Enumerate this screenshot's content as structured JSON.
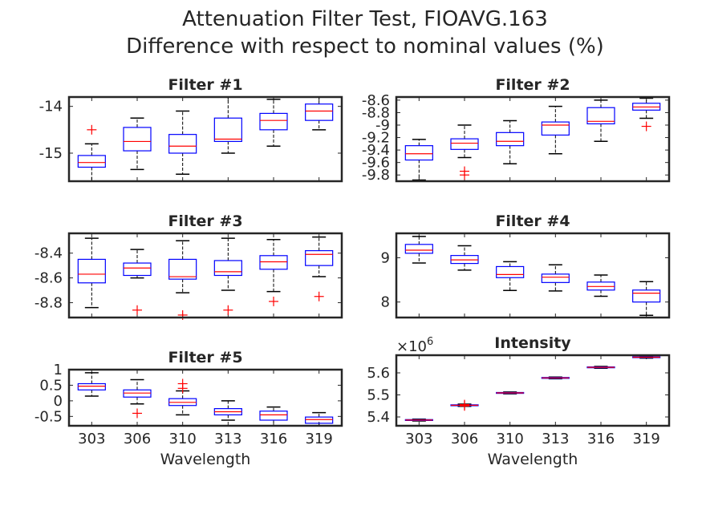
{
  "figure": {
    "title_line1": "Attenuation Filter Test, FIOAVG.163",
    "title_line2": "Difference with respect to nominal values (%)"
  },
  "chart_data": [
    {
      "type": "boxplot",
      "title": "Filter #1",
      "categories": [
        "303",
        "306",
        "310",
        "313",
        "316",
        "319"
      ],
      "xlabel": "",
      "ylim": [
        -15.6,
        -13.8
      ],
      "yticks": [
        -15,
        -14
      ],
      "ytick_labels": [
        "-15",
        "-14"
      ],
      "boxes": [
        {
          "whisker_low": -15.6,
          "q1": -15.3,
          "median": -15.2,
          "q3": -15.05,
          "whisker_high": -14.8,
          "outliers": [
            -14.5
          ]
        },
        {
          "whisker_low": -15.35,
          "q1": -14.95,
          "median": -14.75,
          "q3": -14.45,
          "whisker_high": -14.25,
          "outliers": []
        },
        {
          "whisker_low": -15.45,
          "q1": -15.0,
          "median": -14.85,
          "q3": -14.6,
          "whisker_high": -14.1,
          "outliers": []
        },
        {
          "whisker_low": -15.0,
          "q1": -14.75,
          "median": -14.7,
          "q3": -14.25,
          "whisker_high": -13.8,
          "outliers": []
        },
        {
          "whisker_low": -14.85,
          "q1": -14.5,
          "median": -14.3,
          "q3": -14.15,
          "whisker_high": -13.85,
          "outliers": []
        },
        {
          "whisker_low": -14.5,
          "q1": -14.3,
          "median": -14.1,
          "q3": -13.95,
          "whisker_high": -13.8,
          "outliers": []
        }
      ]
    },
    {
      "type": "boxplot",
      "title": "Filter #2",
      "categories": [
        "303",
        "306",
        "310",
        "313",
        "316",
        "319"
      ],
      "xlabel": "",
      "ylim": [
        -9.9,
        -8.55
      ],
      "yticks": [
        -9.8,
        -9.6,
        -9.4,
        -9.2,
        -9,
        -8.8,
        -8.6
      ],
      "ytick_labels": [
        "-9.8",
        "-9.6",
        "-9.4",
        "-9.2",
        "-9",
        "-8.8",
        "-8.6"
      ],
      "boxes": [
        {
          "whisker_low": -9.88,
          "q1": -9.56,
          "median": -9.46,
          "q3": -9.33,
          "whisker_high": -9.23,
          "outliers": []
        },
        {
          "whisker_low": -9.52,
          "q1": -9.39,
          "median": -9.29,
          "q3": -9.22,
          "whisker_high": -9.0,
          "outliers": [
            -9.74,
            -9.8
          ]
        },
        {
          "whisker_low": -9.62,
          "q1": -9.33,
          "median": -9.26,
          "q3": -9.12,
          "whisker_high": -8.93,
          "outliers": []
        },
        {
          "whisker_low": -9.46,
          "q1": -9.16,
          "median": -9.0,
          "q3": -8.95,
          "whisker_high": -8.7,
          "outliers": []
        },
        {
          "whisker_low": -9.26,
          "q1": -8.98,
          "median": -8.94,
          "q3": -8.72,
          "whisker_high": -8.6,
          "outliers": []
        },
        {
          "whisker_low": -8.89,
          "q1": -8.76,
          "median": -8.71,
          "q3": -8.65,
          "whisker_high": -8.57,
          "outliers": [
            -9.02
          ]
        }
      ]
    },
    {
      "type": "boxplot",
      "title": "Filter #3",
      "categories": [
        "303",
        "306",
        "310",
        "313",
        "316",
        "319"
      ],
      "xlabel": "",
      "ylim": [
        -8.92,
        -8.24
      ],
      "yticks": [
        -8.8,
        -8.6,
        -8.4
      ],
      "ytick_labels": [
        "-8.8",
        "-8.6",
        "-8.4"
      ],
      "boxes": [
        {
          "whisker_low": -8.84,
          "q1": -8.64,
          "median": -8.57,
          "q3": -8.45,
          "whisker_high": -8.28,
          "outliers": []
        },
        {
          "whisker_low": -8.6,
          "q1": -8.58,
          "median": -8.52,
          "q3": -8.48,
          "whisker_high": -8.37,
          "outliers": [
            -8.86
          ]
        },
        {
          "whisker_low": -8.72,
          "q1": -8.61,
          "median": -8.59,
          "q3": -8.45,
          "whisker_high": -8.3,
          "outliers": [
            -8.9
          ]
        },
        {
          "whisker_low": -8.7,
          "q1": -8.58,
          "median": -8.55,
          "q3": -8.46,
          "whisker_high": -8.28,
          "outliers": [
            -8.86
          ]
        },
        {
          "whisker_low": -8.71,
          "q1": -8.53,
          "median": -8.47,
          "q3": -8.42,
          "whisker_high": -8.29,
          "outliers": [
            -8.79
          ]
        },
        {
          "whisker_low": -8.59,
          "q1": -8.5,
          "median": -8.41,
          "q3": -8.38,
          "whisker_high": -8.27,
          "outliers": [
            -8.75
          ]
        }
      ]
    },
    {
      "type": "boxplot",
      "title": "Filter #4",
      "categories": [
        "303",
        "306",
        "310",
        "313",
        "316",
        "319"
      ],
      "xlabel": "",
      "ylim": [
        7.65,
        9.55
      ],
      "yticks": [
        8,
        9
      ],
      "ytick_labels": [
        "8",
        "9"
      ],
      "boxes": [
        {
          "whisker_low": 8.88,
          "q1": 9.1,
          "median": 9.17,
          "q3": 9.3,
          "whisker_high": 9.48,
          "outliers": []
        },
        {
          "whisker_low": 8.72,
          "q1": 8.87,
          "median": 8.95,
          "q3": 9.05,
          "whisker_high": 9.27,
          "outliers": []
        },
        {
          "whisker_low": 8.26,
          "q1": 8.55,
          "median": 8.62,
          "q3": 8.8,
          "whisker_high": 8.91,
          "outliers": []
        },
        {
          "whisker_low": 8.25,
          "q1": 8.44,
          "median": 8.56,
          "q3": 8.63,
          "whisker_high": 8.84,
          "outliers": []
        },
        {
          "whisker_low": 8.13,
          "q1": 8.27,
          "median": 8.35,
          "q3": 8.45,
          "whisker_high": 8.61,
          "outliers": []
        },
        {
          "whisker_low": 7.7,
          "q1": 8.0,
          "median": 8.2,
          "q3": 8.27,
          "whisker_high": 8.46,
          "outliers": []
        }
      ]
    },
    {
      "type": "boxplot",
      "title": "Filter #5",
      "categories": [
        "303",
        "306",
        "310",
        "313",
        "316",
        "319"
      ],
      "xlabel": "Wavelength",
      "ylim": [
        -0.8,
        1.0
      ],
      "yticks": [
        -0.5,
        0,
        0.5,
        1
      ],
      "ytick_labels": [
        "-0.5",
        "0",
        "0.5",
        "1"
      ],
      "boxes": [
        {
          "whisker_low": 0.15,
          "q1": 0.35,
          "median": 0.47,
          "q3": 0.55,
          "whisker_high": 0.9,
          "outliers": []
        },
        {
          "whisker_low": -0.1,
          "q1": 0.12,
          "median": 0.25,
          "q3": 0.35,
          "whisker_high": 0.68,
          "outliers": [
            -0.4
          ]
        },
        {
          "whisker_low": -0.45,
          "q1": -0.15,
          "median": -0.05,
          "q3": 0.07,
          "whisker_high": 0.32,
          "outliers": [
            0.4,
            0.55
          ]
        },
        {
          "whisker_low": -0.62,
          "q1": -0.45,
          "median": -0.35,
          "q3": -0.25,
          "whisker_high": 0.0,
          "outliers": []
        },
        {
          "whisker_low": -0.8,
          "q1": -0.62,
          "median": -0.45,
          "q3": -0.33,
          "whisker_high": -0.2,
          "outliers": []
        },
        {
          "whisker_low": -0.8,
          "q1": -0.72,
          "median": -0.6,
          "q3": -0.52,
          "whisker_high": -0.38,
          "outliers": []
        }
      ]
    },
    {
      "type": "boxplot",
      "title": "Intensity",
      "categories": [
        "303",
        "306",
        "310",
        "313",
        "316",
        "319"
      ],
      "xlabel": "Wavelength",
      "y_exponent_label": "×10",
      "y_exponent": "6",
      "ylim": [
        5.36,
        5.68
      ],
      "yticks": [
        5.4,
        5.5,
        5.6
      ],
      "ytick_labels": [
        "5.4",
        "5.5",
        "5.6"
      ],
      "boxes": [
        {
          "whisker_low": 5.382,
          "q1": 5.384,
          "median": 5.386,
          "q3": 5.388,
          "whisker_high": 5.39,
          "outliers": []
        },
        {
          "whisker_low": 5.448,
          "q1": 5.451,
          "median": 5.453,
          "q3": 5.455,
          "whisker_high": 5.458,
          "outliers": [
            5.45,
            5.456
          ]
        },
        {
          "whisker_low": 5.505,
          "q1": 5.507,
          "median": 5.509,
          "q3": 5.511,
          "whisker_high": 5.513,
          "outliers": []
        },
        {
          "whisker_low": 5.573,
          "q1": 5.575,
          "median": 5.577,
          "q3": 5.579,
          "whisker_high": 5.581,
          "outliers": []
        },
        {
          "whisker_low": 5.621,
          "q1": 5.623,
          "median": 5.625,
          "q3": 5.627,
          "whisker_high": 5.629,
          "outliers": []
        },
        {
          "whisker_low": 5.667,
          "q1": 5.669,
          "median": 5.671,
          "q3": 5.673,
          "whisker_high": 5.675,
          "outliers": []
        }
      ]
    }
  ],
  "colors": {
    "box": "#0000ff",
    "median": "#ff0000",
    "whisker": "#000000",
    "outlier": "#ff0000",
    "axis": "#262626"
  }
}
